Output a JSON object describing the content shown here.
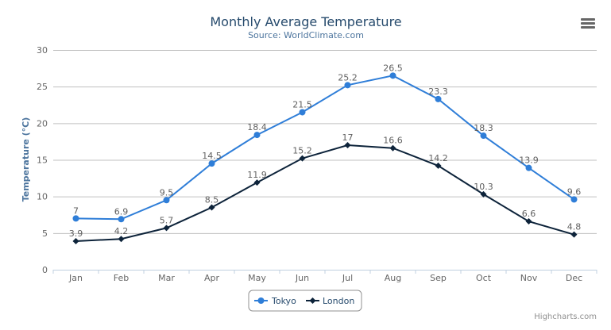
{
  "chart_data": {
    "type": "line",
    "title": "Monthly Average Temperature",
    "subtitle": "Source: WorldClimate.com",
    "xlabel": "",
    "ylabel": "Temperature (°C)",
    "categories": [
      "Jan",
      "Feb",
      "Mar",
      "Apr",
      "May",
      "Jun",
      "Jul",
      "Aug",
      "Sep",
      "Oct",
      "Nov",
      "Dec"
    ],
    "yticks": [
      0,
      5,
      10,
      15,
      20,
      25,
      30
    ],
    "ylim": [
      0,
      30
    ],
    "grid": true,
    "legend_placement": "bottom",
    "data_labels": true,
    "series": [
      {
        "name": "Tokyo",
        "color": "#2f7ed8",
        "marker": "circle",
        "values": [
          7.0,
          6.9,
          9.5,
          14.5,
          18.4,
          21.5,
          25.2,
          26.5,
          23.3,
          18.3,
          13.9,
          9.6
        ]
      },
      {
        "name": "London",
        "color": "#0d233a",
        "marker": "diamond",
        "values": [
          3.9,
          4.2,
          5.7,
          8.5,
          11.9,
          15.2,
          17.0,
          16.6,
          14.2,
          10.3,
          6.6,
          4.8
        ]
      }
    ]
  },
  "credits": "Highcharts.com",
  "menu_icon": "hamburger-menu-icon"
}
